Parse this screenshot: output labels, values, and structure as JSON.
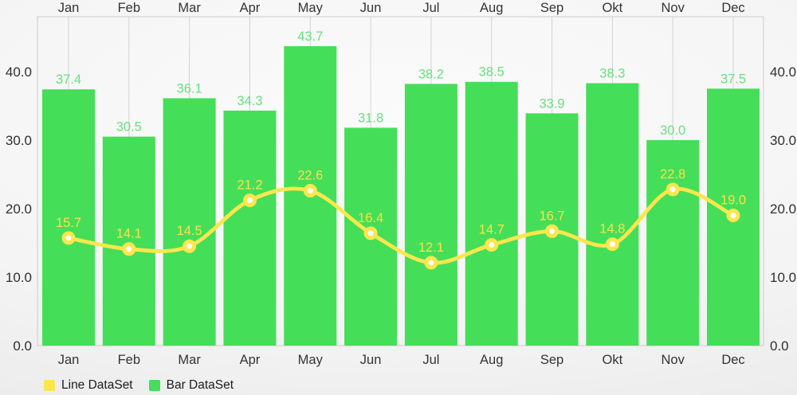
{
  "chart_data": {
    "type": "bar+line combo",
    "categories": [
      "Jan",
      "Feb",
      "Mar",
      "Apr",
      "May",
      "Jun",
      "Jul",
      "Aug",
      "Sep",
      "Okt",
      "Nov",
      "Dec"
    ],
    "series": [
      {
        "name": "Line DataSet",
        "type": "line",
        "values": [
          15.7,
          14.1,
          14.5,
          21.2,
          22.6,
          16.4,
          12.1,
          14.7,
          16.7,
          14.8,
          22.8,
          19.0
        ],
        "color": "#FBE74D",
        "value_label_color": "#FBE24C",
        "point_fill": "#FFFFFF",
        "smooth": true
      },
      {
        "name": "Bar DataSet",
        "type": "bar",
        "values": [
          37.4,
          30.5,
          36.1,
          34.3,
          43.7,
          31.8,
          38.2,
          38.5,
          33.9,
          38.3,
          30.0,
          37.5
        ],
        "color": "#45DE58",
        "value_label_color": "#68DF7F"
      }
    ],
    "x_axis": {
      "label_positions": [
        "top",
        "bottom"
      ],
      "text_color": "#333333"
    },
    "y_axis": {
      "ticks": [
        "0.0",
        "10.0",
        "20.0",
        "30.0",
        "40.0"
      ],
      "tick_values": [
        0,
        10,
        20,
        30,
        40
      ],
      "min": 0,
      "max": 48,
      "sides": [
        "left",
        "right"
      ],
      "text_color": "#2f2f2f"
    },
    "grid": {
      "vertical": true,
      "horizontal": false,
      "color": "#d3d3d3",
      "border_color": "#cccccc"
    },
    "legend": {
      "position": "bottom-left",
      "items": [
        {
          "label": "Line DataSet",
          "color": "#FBE74D"
        },
        {
          "label": "Bar DataSet",
          "color": "#45DE58"
        }
      ]
    }
  }
}
